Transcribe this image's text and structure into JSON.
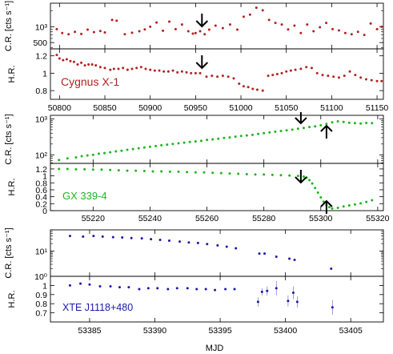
{
  "figure": {
    "xlabel": "MJD"
  },
  "chart_data": [
    {
      "type": "scatter",
      "name": "Cygnus X-1",
      "color": "#b22222",
      "xlim": [
        50790,
        51157
      ],
      "xticks": [
        50800,
        50850,
        50900,
        50950,
        51000,
        51050,
        51100,
        51150
      ],
      "source_label": "Cygnus X-1",
      "down_arrows": [
        50957
      ],
      "up_arrows": [],
      "cr": {
        "ylabel": "C.R. [cts s⁻¹]",
        "log": true,
        "ylim": [
          380,
          2800
        ],
        "yticks": [
          500,
          1000
        ],
        "ytick_labels": [
          "500",
          "10³"
        ],
        "x": [
          50797,
          50803,
          50810,
          50817,
          50824,
          50831,
          50838,
          50845,
          50850,
          50858,
          50863,
          50872,
          50880,
          50888,
          50894,
          50900,
          50907,
          50914,
          50921,
          50928,
          50935,
          50942,
          50947,
          50950,
          50955,
          50960,
          50965,
          50972,
          50980,
          50988,
          50996,
          51003,
          51010,
          51017,
          51024,
          51031,
          51038,
          51045,
          51052,
          51059,
          51066,
          51073,
          51080,
          51087,
          51094,
          51101,
          51108,
          51115,
          51122,
          51129,
          51136,
          51143,
          51150,
          51155
        ],
        "y": [
          900,
          760,
          720,
          800,
          730,
          880,
          790,
          830,
          780,
          1350,
          1300,
          720,
          770,
          820,
          890,
          1000,
          1200,
          840,
          1250,
          900,
          1100,
          820,
          740,
          760,
          820,
          720,
          880,
          1050,
          940,
          1100,
          880,
          1550,
          1700,
          2300,
          2050,
          1350,
          1180,
          1100,
          890,
          1050,
          760,
          1100,
          820,
          980,
          1180,
          900,
          850,
          760,
          720,
          800,
          700,
          1150,
          900,
          1000
        ]
      },
      "hr": {
        "ylabel": "H.R.",
        "ylim": [
          0.7,
          1.28
        ],
        "yticks": [
          0.8,
          1,
          1.2
        ],
        "ytick_labels": [
          "0.8",
          "1",
          "1.2"
        ],
        "x": [
          50797,
          50800,
          50804,
          50808,
          50812,
          50816,
          50820,
          50824,
          50828,
          50832,
          50836,
          50840,
          50845,
          50850,
          50856,
          50860,
          50865,
          50870,
          50875,
          50880,
          50885,
          50890,
          50895,
          50900,
          50905,
          50910,
          50915,
          50920,
          50925,
          50930,
          50935,
          50940,
          50945,
          50950,
          50955,
          50962,
          50968,
          50974,
          50980,
          50986,
          50992,
          50998,
          51003,
          51008,
          51013,
          51018,
          51024,
          51030,
          51035,
          51040,
          51045,
          51050,
          51055,
          51060,
          51066,
          51072,
          51078,
          51084,
          51090,
          51096,
          51102,
          51108,
          51114,
          51120,
          51126,
          51132,
          51138,
          51144,
          51150,
          51155
        ],
        "y": [
          1.21,
          1.17,
          1.15,
          1.16,
          1.14,
          1.13,
          1.1,
          1.12,
          1.09,
          1.1,
          1.1,
          1.09,
          1.07,
          1.06,
          1.04,
          1.05,
          1.05,
          1.06,
          1.04,
          1.05,
          1.06,
          1.07,
          1.05,
          1.04,
          1.03,
          1.03,
          1.02,
          1.02,
          1.03,
          1.01,
          1.02,
          1.01,
          1.0,
          1.0,
          1.0,
          0.96,
          0.97,
          0.96,
          0.97,
          0.96,
          0.94,
          0.88,
          0.85,
          0.84,
          0.82,
          0.81,
          0.8,
          0.97,
          0.98,
          0.99,
          1.0,
          1.02,
          1.03,
          1.04,
          1.05,
          1.07,
          1.06,
          1.0,
          0.98,
          0.97,
          0.96,
          0.95,
          0.97,
          1.02,
          0.98,
          0.95,
          0.93,
          0.92,
          0.91,
          0.91
        ]
      }
    },
    {
      "type": "scatter",
      "name": "GX 339-4",
      "color": "#1fb51f",
      "xlim": [
        55205,
        55322
      ],
      "xticks": [
        55220,
        55240,
        55260,
        55280,
        55300,
        55320
      ],
      "source_label": "GX 339-4",
      "down_arrows": [
        55293
      ],
      "up_arrows": [
        55302
      ],
      "cr": {
        "ylabel": "C.R. [cts s⁻¹]",
        "log": true,
        "ylim": [
          58,
          1250
        ],
        "yticks": [
          100,
          1000
        ],
        "ytick_labels": [
          "10²",
          "10³"
        ],
        "x": [
          55208,
          55211,
          55214,
          55216,
          55218,
          55220,
          55222,
          55224,
          55226,
          55228,
          55230,
          55232,
          55234,
          55236,
          55238,
          55240,
          55242,
          55244,
          55246,
          55248,
          55250,
          55252,
          55254,
          55256,
          55258,
          55260,
          55262,
          55264,
          55266,
          55268,
          55270,
          55272,
          55274,
          55276,
          55278,
          55280,
          55282,
          55284,
          55286,
          55288,
          55290,
          55292,
          55294,
          55296,
          55298,
          55300,
          55302,
          55304,
          55306,
          55308,
          55310,
          55312,
          55314,
          55316,
          55318
        ],
        "y": [
          72,
          80,
          85,
          92,
          96,
          100,
          108,
          112,
          118,
          125,
          130,
          138,
          145,
          152,
          160,
          168,
          175,
          185,
          192,
          200,
          210,
          218,
          228,
          235,
          245,
          260,
          270,
          280,
          295,
          305,
          320,
          335,
          345,
          360,
          380,
          400,
          420,
          440,
          460,
          480,
          500,
          530,
          560,
          590,
          620,
          660,
          720,
          800,
          850,
          820,
          780,
          760,
          740,
          770,
          760
        ]
      },
      "hr": {
        "ylabel": "H.R.",
        "ylim": [
          0,
          1.36
        ],
        "yticks": [
          0,
          0.2,
          0.4,
          0.6,
          0.8,
          1.0,
          1.2
        ],
        "ytick_labels": [
          "0",
          "0.2",
          "0.4",
          "0.6",
          "0.8",
          "1",
          "1.2"
        ],
        "x": [
          55208,
          55211,
          55214,
          55217,
          55220,
          55223,
          55226,
          55229,
          55232,
          55235,
          55238,
          55241,
          55244,
          55247,
          55250,
          55253,
          55256,
          55259,
          55262,
          55265,
          55268,
          55271,
          55274,
          55277,
          55280,
          55283,
          55286,
          55289,
          55292,
          55294,
          55295,
          55296,
          55297,
          55298,
          55299,
          55300,
          55301,
          55302,
          55303,
          55304,
          55306,
          55308,
          55310,
          55312,
          55314,
          55316,
          55318
        ],
        "y": [
          1.2,
          1.2,
          1.19,
          1.19,
          1.18,
          1.18,
          1.17,
          1.16,
          1.15,
          1.15,
          1.14,
          1.13,
          1.13,
          1.12,
          1.12,
          1.11,
          1.1,
          1.1,
          1.09,
          1.08,
          1.07,
          1.06,
          1.05,
          1.04,
          1.04,
          1.03,
          1.02,
          1.01,
          1.0,
          0.98,
          0.95,
          0.88,
          0.78,
          0.65,
          0.52,
          0.38,
          0.26,
          0.16,
          0.1,
          0.06,
          0.08,
          0.12,
          0.15,
          0.18,
          0.21,
          0.25,
          0.3
        ]
      }
    },
    {
      "type": "scatter",
      "name": "XTE J1118+480",
      "color": "#1a1aa8",
      "xlim": [
        53382,
        53407.5
      ],
      "xticks": [
        53385,
        53390,
        53395,
        53400,
        53405
      ],
      "source_label": "XTE J1118+480",
      "down_arrows": [],
      "up_arrows": [],
      "cr": {
        "ylabel": "C.R. [cts s⁻¹]",
        "log": true,
        "ylim": [
          1,
          70
        ],
        "yticks": [
          1,
          10
        ],
        "ytick_labels": [
          "10⁰",
          "10¹"
        ],
        "x": [
          53383.5,
          53384.5,
          53385.3,
          53386.0,
          53386.8,
          53387.5,
          53388.2,
          53389.0,
          53389.7,
          53390.4,
          53391.1,
          53391.9,
          53392.6,
          53393.3,
          53394.0,
          53394.8,
          53395.5,
          53396.2,
          53398.0,
          53398.4,
          53399.3,
          53400.3,
          53400.7,
          53403.5
        ],
        "y": [
          40,
          38,
          40,
          38,
          36,
          35,
          33,
          32,
          30,
          28,
          26,
          24,
          22,
          21,
          19,
          17,
          15,
          13,
          8,
          8,
          6,
          5,
          4.5,
          2
        ]
      },
      "hr": {
        "ylabel": "H.R.",
        "ylim": [
          0.6,
          1.1
        ],
        "yticks": [
          0.7,
          0.8,
          0.9,
          1.0
        ],
        "ytick_labels": [
          "0.7",
          "0.8",
          "0.9",
          "1"
        ],
        "x": [
          53383.5,
          53384.3,
          53385.0,
          53385.8,
          53386.6,
          53387.3,
          53388.0,
          53388.8,
          53389.5,
          53390.2,
          53391.0,
          53391.7,
          53392.5,
          53393.2,
          53393.9,
          53394.6,
          53395.4,
          53396.1,
          53397.9,
          53398.2,
          53398.6,
          53399.3,
          53400.2,
          53400.6,
          53400.9,
          53403.6
        ],
        "y": [
          1.0,
          1.02,
          1.01,
          0.99,
          0.99,
          0.98,
          0.98,
          0.96,
          0.97,
          0.97,
          0.96,
          0.97,
          0.97,
          0.96,
          0.96,
          0.95,
          0.96,
          0.96,
          0.82,
          0.93,
          0.94,
          0.97,
          0.83,
          0.92,
          0.82,
          0.76
        ],
        "err": [
          0,
          0,
          0,
          0,
          0,
          0,
          0,
          0,
          0,
          0,
          0,
          0,
          0,
          0,
          0,
          0,
          0,
          0,
          0.05,
          0.04,
          0.05,
          0.08,
          0.06,
          0.07,
          0.06,
          0.08
        ]
      }
    }
  ]
}
